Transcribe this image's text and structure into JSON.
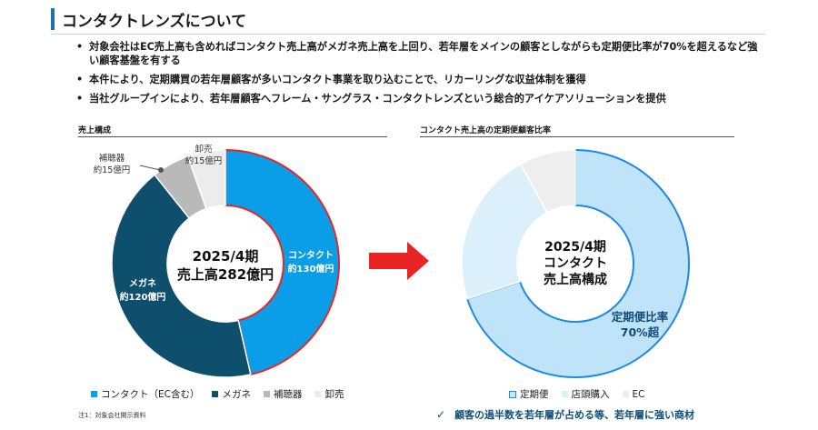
{
  "title": "コンタクトレンズについて",
  "bullets": [
    "対象会社はEC売上高も含めればコンタクト売上高がメガネ売上高を上回り、若年層をメインの顧客としながらも定期便比率が70%を超えるなど強い顧客基盤を有する",
    "本件により、定期購買の若年層顧客が多いコンタクト事業を取り込むことで、リカーリングな収益体制を獲得",
    "当社グループインにより、若年層顧客へフレーム・サングラス・コンタクトレンズという総合的アイケアソリューションを提供"
  ],
  "left_section_label": "売上構成",
  "right_section_label": "コンタクト売上高の定期便顧客比率",
  "colors": {
    "contact": "#0b9ee8",
    "megane": "#0e4f6e",
    "hochoki": "#b9b9b9",
    "oroshi": "#ececec",
    "teiki": "#bfe4fa",
    "tentou": "#dcf0fb",
    "ec": "#eeeeee",
    "arrow": "#e82424",
    "accent": "#1e6fb6"
  },
  "icons": {
    "arrow": "right-arrow-icon",
    "check": "check-icon"
  },
  "chart_data": [
    {
      "type": "pie",
      "variant": "donut",
      "center_label": [
        "2025/4期",
        "売上高282億円"
      ],
      "categories": [
        "コンタクト（EC含む）",
        "メガネ",
        "補聴器",
        "卸売"
      ],
      "values": [
        130,
        120,
        15,
        15
      ],
      "slice_labels": [
        [
          "コンタクト",
          "約130億円"
        ],
        [
          "メガネ",
          "約120億円"
        ],
        [
          "補聴器",
          "約15億円"
        ],
        [
          "卸売",
          "約15億円"
        ]
      ],
      "legend": [
        "コンタクト（EC含む）",
        "メガネ",
        "補聴器",
        "卸売"
      ],
      "legend_position": "bottom"
    },
    {
      "type": "pie",
      "variant": "donut",
      "center_label": [
        "2025/4期",
        "コンタクト",
        "売上高構成"
      ],
      "categories": [
        "定期便",
        "店頭購入",
        "EC"
      ],
      "values": [
        70,
        22,
        8
      ],
      "annotation": [
        "定期便比率",
        "70%超"
      ],
      "legend": [
        "定期便",
        "店頭購入",
        "EC"
      ],
      "legend_position": "bottom"
    }
  ],
  "footnote": "注1：対象会社開示資料",
  "conclusion": "顧客の過半数を若年層が占める等、若年層に強い商材"
}
